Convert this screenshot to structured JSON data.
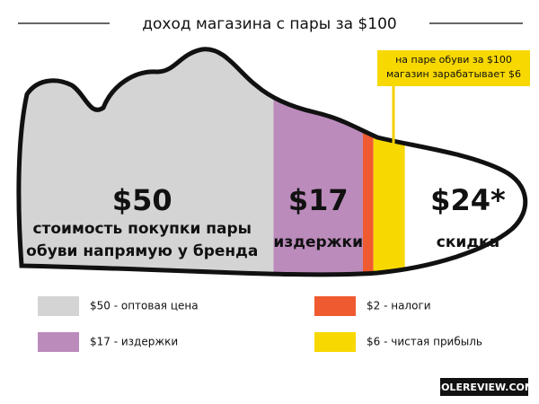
{
  "chart_data": {
    "type": "bar",
    "title": "доход магазина с пары за $100",
    "annotation": [
      "на паре обуви за $100",
      "магазин зарабатывает $6"
    ],
    "source": "SOLEREVIEW.COM",
    "series": [
      {
        "name": "$50 - оптовая цена",
        "color": "#d4d4d4",
        "values": [
          50
        ],
        "value_labels": [
          "$50"
        ],
        "label": [
          "стоимость покупки пары",
          "обуви напрямую у бренда"
        ]
      },
      {
        "name": "$17 - издержки",
        "color": "#bb8bbb",
        "values": [
          17
        ],
        "value_labels": [
          "$17"
        ],
        "label": [
          "издержки"
        ]
      },
      {
        "name": "$2 - налоги",
        "color": "#f05a30",
        "values": [
          2
        ]
      },
      {
        "name": "$6 - чистая прибыль",
        "color": "#f7d800",
        "values": [
          6
        ]
      },
      {
        "color": "#ffffff",
        "values": [
          24
        ],
        "value_labels": [
          "$24*"
        ],
        "label": [
          "скидка"
        ]
      }
    ]
  }
}
